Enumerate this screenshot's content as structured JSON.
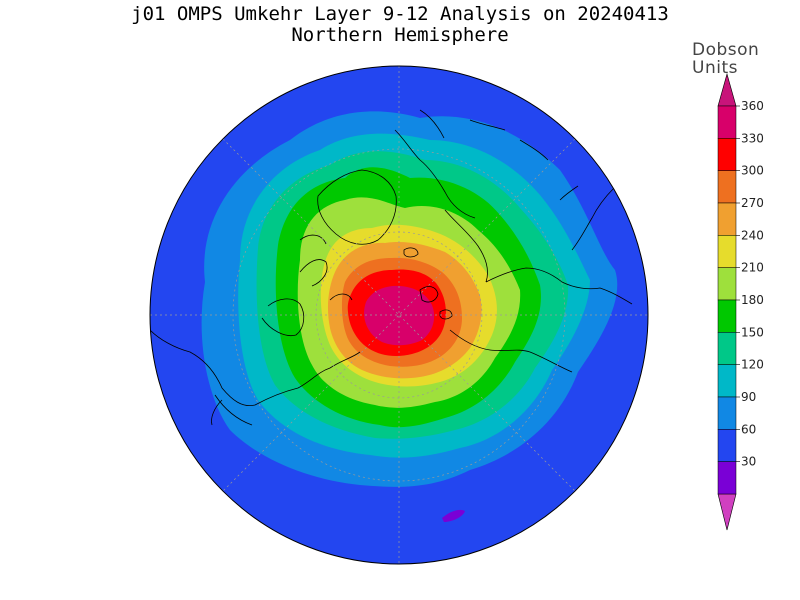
{
  "title": "j01 OMPS Umkehr Layer 9-12 Analysis on 20240413",
  "subtitle": "Northern Hemisphere",
  "colorbar": {
    "units_line1": "Dobson",
    "units_line2": "Units",
    "ticks": [
      "30",
      "60",
      "90",
      "120",
      "150",
      "180",
      "210",
      "240",
      "270",
      "300",
      "330",
      "360"
    ],
    "colors": [
      "#7a00d6",
      "#2346f0",
      "#1188e4",
      "#00b8c8",
      "#00c888",
      "#00c800",
      "#9ee03c",
      "#e6dc2c",
      "#f0a030",
      "#ee7020",
      "#ff0000",
      "#d8006a"
    ],
    "below_color": "#d040c0",
    "above_color": "#c8147a"
  },
  "map": {
    "projection": "north-polar-stereographic",
    "background_level_color": "#2346f0"
  }
}
